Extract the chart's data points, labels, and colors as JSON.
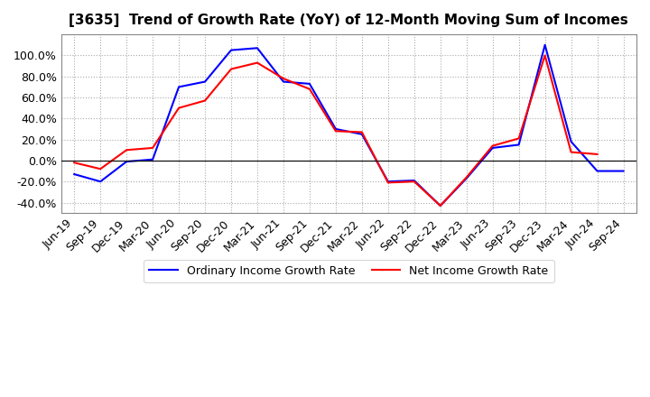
{
  "title": "[3635]  Trend of Growth Rate (YoY) of 12-Month Moving Sum of Incomes",
  "ordinary_income": {
    "dates": [
      "Jun-19",
      "Sep-19",
      "Dec-19",
      "Mar-20",
      "Jun-20",
      "Sep-20",
      "Dec-20",
      "Mar-21",
      "Jun-21",
      "Sep-21",
      "Dec-21",
      "Mar-22",
      "Jun-22",
      "Sep-22",
      "Dec-22",
      "Mar-23",
      "Jun-23",
      "Sep-23",
      "Dec-23",
      "Mar-24",
      "Jun-24",
      "Sep-24"
    ],
    "values": [
      -0.13,
      -0.2,
      -0.01,
      0.01,
      0.7,
      0.75,
      1.05,
      1.07,
      0.75,
      0.73,
      0.3,
      0.25,
      -0.2,
      -0.19,
      -0.43,
      -0.17,
      0.12,
      0.15,
      1.1,
      0.18,
      -0.1,
      -0.1
    ]
  },
  "net_income": {
    "dates": [
      "Jun-19",
      "Sep-19",
      "Dec-19",
      "Mar-20",
      "Jun-20",
      "Sep-20",
      "Dec-20",
      "Mar-21",
      "Jun-21",
      "Sep-21",
      "Dec-21",
      "Mar-22",
      "Jun-22",
      "Sep-22",
      "Dec-22",
      "Mar-23",
      "Jun-23",
      "Sep-23",
      "Dec-23",
      "Mar-24",
      "Jun-24",
      "Sep-24"
    ],
    "values": [
      -0.02,
      -0.08,
      0.1,
      0.12,
      0.5,
      0.57,
      0.87,
      0.93,
      0.78,
      0.68,
      0.28,
      0.27,
      -0.21,
      -0.2,
      -0.43,
      -0.16,
      0.14,
      0.21,
      1.0,
      0.08,
      0.06,
      null
    ]
  },
  "ordinary_color": "#0000ff",
  "net_color": "#ff0000",
  "background": "#ffffff",
  "plot_bg": "#ffffff",
  "ylim": [
    -0.5,
    1.2
  ],
  "yticks": [
    -0.4,
    -0.2,
    0.0,
    0.2,
    0.4,
    0.6,
    0.8,
    1.0
  ],
  "grid_color": "#aaaaaa",
  "legend_labels": [
    "Ordinary Income Growth Rate",
    "Net Income Growth Rate"
  ],
  "title_fontsize": 11,
  "tick_fontsize": 9,
  "legend_fontsize": 9,
  "linewidth": 1.5
}
